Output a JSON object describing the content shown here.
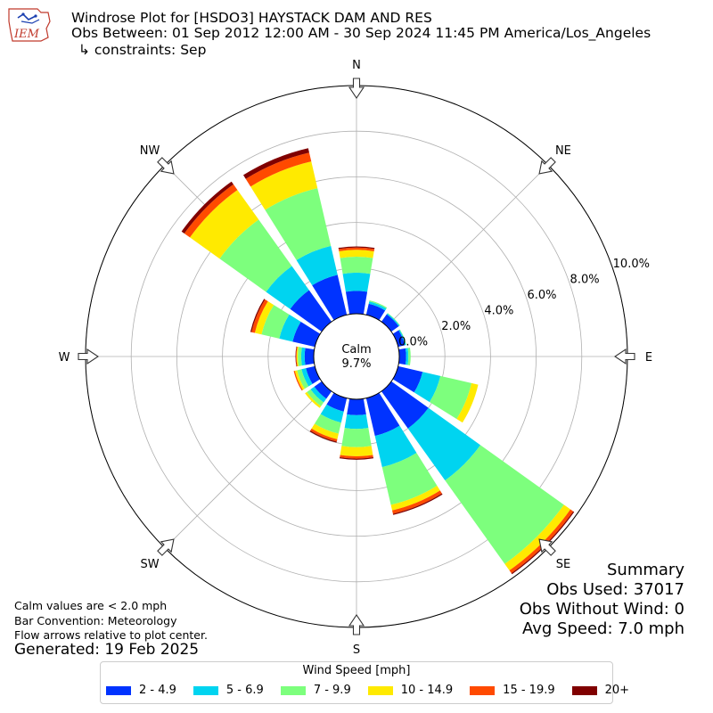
{
  "header": {
    "logo_text": "IEM",
    "title_line1": "Windrose Plot for [HSDO3] HAYSTACK DAM AND RES",
    "title_line2": "Obs Between: 01 Sep 2012 12:00 AM - 30 Sep 2024 11:45 PM America/Los_Angeles",
    "title_line3": "↳ constraints: Sep"
  },
  "notes": {
    "calm_def": "Calm values are < 2.0 mph",
    "bar_convention": "Bar Convention: Meteorology",
    "flow_arrows": "Flow arrows relative to plot center.",
    "generated": "Generated: 19 Feb 2025"
  },
  "summary": {
    "heading": "Summary",
    "obs_used": "Obs Used: 37017",
    "obs_without_wind": "Obs Without Wind: 0",
    "avg_speed": "Avg Speed: 7.0 mph"
  },
  "legend": {
    "title": "Wind Speed [mph]",
    "items": [
      {
        "label": "2 - 4.9",
        "color": "#0033ff"
      },
      {
        "label": "5 - 6.9",
        "color": "#00d4f0"
      },
      {
        "label": "7 - 9.9",
        "color": "#7dff7d"
      },
      {
        "label": "10 - 14.9",
        "color": "#ffea00"
      },
      {
        "label": "15 - 19.9",
        "color": "#ff4a00"
      },
      {
        "label": "20+",
        "color": "#800000"
      }
    ]
  },
  "chart_data": {
    "type": "windrose",
    "directions": [
      "N",
      "NNE",
      "NE",
      "ENE",
      "E",
      "ESE",
      "SE",
      "SSE",
      "S",
      "SSW",
      "SW",
      "WSW",
      "W",
      "WNW",
      "NW",
      "NNW"
    ],
    "speed_bins": [
      "2 - 4.9",
      "5 - 6.9",
      "7 - 9.9",
      "10 - 14.9",
      "15 - 19.9",
      "20+"
    ],
    "bin_colors": [
      "#0033ff",
      "#00d4f0",
      "#7dff7d",
      "#ffea00",
      "#ff4a00",
      "#800000"
    ],
    "series": [
      {
        "name": "2 - 4.9",
        "values": [
          1.0,
          0.5,
          0.4,
          0.3,
          0.3,
          1.1,
          2.0,
          1.7,
          0.7,
          0.6,
          0.4,
          0.4,
          0.4,
          1.0,
          1.7,
          1.8
        ]
      },
      {
        "name": "5 - 6.9",
        "values": [
          0.8,
          0.1,
          0.05,
          0.05,
          0.1,
          0.8,
          2.8,
          1.4,
          0.6,
          0.5,
          0.2,
          0.2,
          0.15,
          0.6,
          1.3,
          1.3
        ]
      },
      {
        "name": "7 - 9.9",
        "values": [
          0.7,
          0.05,
          0.02,
          0.02,
          0.1,
          1.4,
          4.5,
          1.7,
          0.8,
          0.5,
          0.2,
          0.2,
          0.15,
          0.8,
          2.5,
          2.6
        ]
      },
      {
        "name": "10 - 14.9",
        "values": [
          0.3,
          0.0,
          0.0,
          0.0,
          0.0,
          0.3,
          0.35,
          0.25,
          0.4,
          0.25,
          0.1,
          0.1,
          0.05,
          0.3,
          1.6,
          1.2
        ]
      },
      {
        "name": "15 - 19.9",
        "values": [
          0.1,
          0.0,
          0.0,
          0.0,
          0.0,
          0.0,
          0.15,
          0.15,
          0.1,
          0.1,
          0.0,
          0.05,
          0.03,
          0.15,
          0.3,
          0.4
        ]
      },
      {
        "name": "20+",
        "values": [
          0.05,
          0.0,
          0.0,
          0.0,
          0.0,
          0.0,
          0.05,
          0.05,
          0.05,
          0.05,
          0.0,
          0.0,
          0.02,
          0.05,
          0.15,
          0.2
        ]
      }
    ],
    "radial_ticks": [
      "0.0%",
      "2.0%",
      "4.0%",
      "6.0%",
      "8.0%",
      "10.0%"
    ],
    "radial_tick_values": [
      0,
      2,
      4,
      6,
      8,
      10
    ],
    "rmax": 10.0,
    "compass_labels": [
      "N",
      "NE",
      "E",
      "SE",
      "S",
      "SW",
      "W",
      "NW"
    ],
    "calm_label": "Calm",
    "calm_value": "9.7%",
    "grid": true
  }
}
